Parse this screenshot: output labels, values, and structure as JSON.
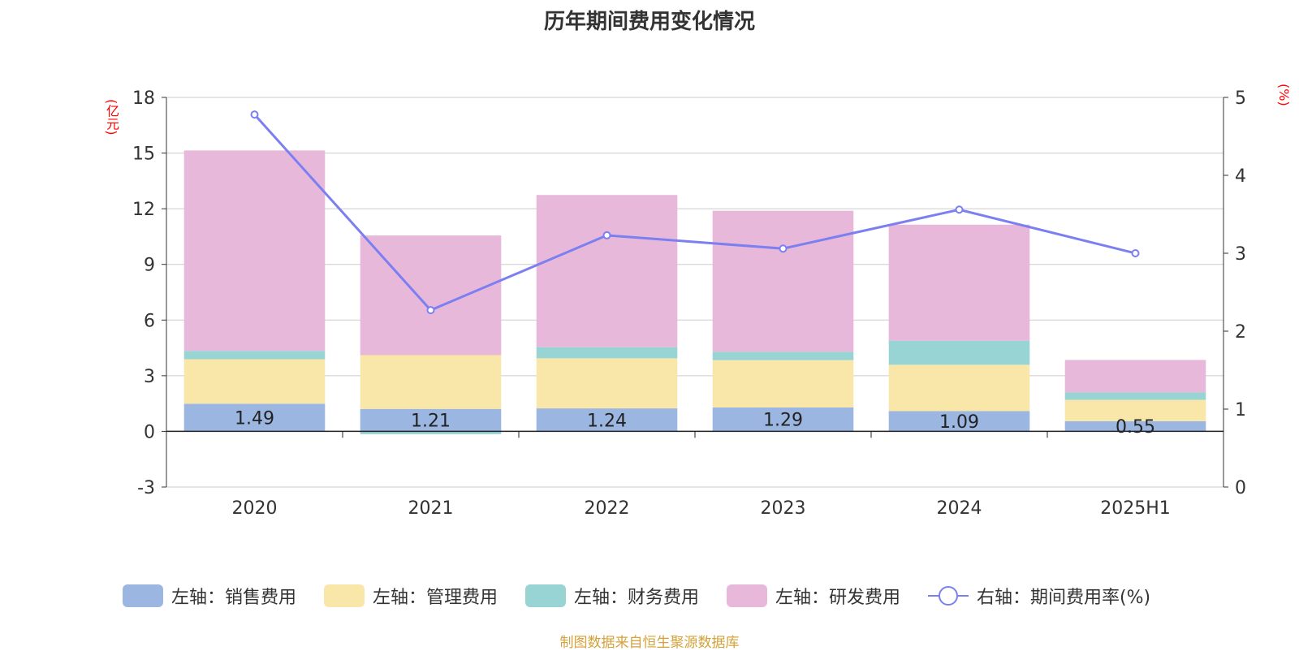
{
  "chart_data": {
    "type": "bar",
    "title": "历年期间费用变化情况",
    "left_unit": "(亿元)",
    "right_unit": "(%)",
    "categories": [
      "2020",
      "2021",
      "2022",
      "2023",
      "2024",
      "2025H1"
    ],
    "left_axis": {
      "min": -3,
      "max": 18,
      "ticks": [
        -3,
        0,
        3,
        6,
        9,
        12,
        15,
        18
      ]
    },
    "right_axis": {
      "min": 0,
      "max": 5,
      "ticks": [
        0,
        1,
        2,
        3,
        4,
        5
      ]
    },
    "grid": true,
    "stacked": true,
    "series": [
      {
        "name": "左轴：销售费用",
        "type": "bar",
        "color": "#9bb6e0",
        "values": [
          1.49,
          1.21,
          1.24,
          1.29,
          1.09,
          0.55
        ],
        "labels": [
          "1.49",
          "1.21",
          "1.24",
          "1.29",
          "1.09",
          "0.55"
        ]
      },
      {
        "name": "左轴：管理费用",
        "type": "bar",
        "color": "#f8e7a9",
        "values": [
          2.4,
          2.9,
          2.7,
          2.55,
          2.5,
          1.15
        ]
      },
      {
        "name": "左轴：财务费用",
        "type": "bar",
        "color": "#98d4d4",
        "values": [
          0.45,
          -0.15,
          0.6,
          0.45,
          1.3,
          0.4
        ]
      },
      {
        "name": "左轴：研发费用",
        "type": "bar",
        "color": "#e8b8da",
        "values": [
          10.8,
          6.45,
          8.2,
          7.6,
          6.25,
          1.75
        ]
      },
      {
        "name": "右轴：期间费用率(%)",
        "type": "line",
        "color": "#7b7ff0",
        "values": [
          4.78,
          2.27,
          3.23,
          3.06,
          3.56,
          3.0
        ]
      }
    ],
    "legend_position": "bottom",
    "source": "制图数据来自恒生聚源数据库"
  }
}
